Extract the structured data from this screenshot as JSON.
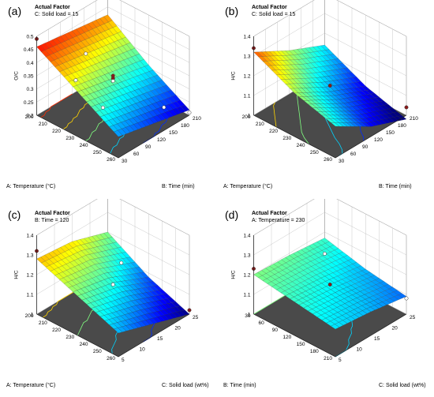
{
  "chart_data": [
    {
      "type": "surface",
      "panel": "(a)",
      "header": {
        "title": "Actual Factor",
        "factor_text": "C: Solid load = 15"
      },
      "xlabel": "A: Temperature (°C)",
      "ylabel": "B: Time (min)",
      "zlabel": "O/C",
      "x_ticks": [
        "200",
        "210",
        "220",
        "230",
        "240",
        "250",
        "260"
      ],
      "y_ticks": [
        "30",
        "60",
        "90",
        "120",
        "150",
        "180",
        "210"
      ],
      "z_ticks": [
        "0.2",
        "0.25",
        "0.3",
        "0.35",
        "0.4",
        "0.45",
        "0.5"
      ],
      "xlim": [
        200,
        260
      ],
      "ylim": [
        30,
        210
      ],
      "zlim": [
        0.2,
        0.5
      ],
      "surface": {
        "x": [
          200,
          230,
          260
        ],
        "y": [
          30,
          120,
          210
        ],
        "z": [
          [
            0.46,
            0.44,
            0.42
          ],
          [
            0.37,
            0.34,
            0.31
          ],
          [
            0.28,
            0.25,
            0.22
          ]
        ]
      },
      "points": [
        [
          200,
          30,
          0.49
        ],
        [
          210,
          120,
          0.38
        ],
        [
          220,
          60,
          0.36
        ],
        [
          230,
          120,
          0.35
        ],
        [
          230,
          120,
          0.34
        ],
        [
          230,
          120,
          0.33
        ],
        [
          240,
          60,
          0.31
        ],
        [
          250,
          180,
          0.23
        ],
        [
          260,
          210,
          0.21
        ]
      ]
    },
    {
      "type": "surface",
      "panel": "(b)",
      "header": {
        "title": "Actual Factor",
        "factor_text": "C: Solid load = 15"
      },
      "xlabel": "A: Temperature (°C)",
      "ylabel": "B: Time (min)",
      "zlabel": "H/C",
      "x_ticks": [
        "200",
        "210",
        "220",
        "230",
        "240",
        "250",
        "260"
      ],
      "y_ticks": [
        "30",
        "60",
        "90",
        "120",
        "150",
        "180",
        "210"
      ],
      "z_ticks": [
        "1",
        "1.1",
        "1.2",
        "1.3",
        "1.4"
      ],
      "xlim": [
        200,
        260
      ],
      "ylim": [
        30,
        210
      ],
      "zlim": [
        1,
        1.4
      ],
      "surface": {
        "x": [
          200,
          230,
          260
        ],
        "y": [
          30,
          120,
          210
        ],
        "z": [
          [
            1.32,
            1.22,
            1.14
          ],
          [
            1.22,
            1.12,
            1.04
          ],
          [
            1.16,
            1.05,
            0.98
          ]
        ]
      },
      "points": [
        [
          200,
          30,
          1.34
        ],
        [
          230,
          120,
          1.15
        ],
        [
          260,
          210,
          1.04
        ]
      ]
    },
    {
      "type": "surface",
      "panel": "(c)",
      "header": {
        "title": "Actual Factor",
        "factor_text": "B: Time = 120"
      },
      "xlabel": "A: Temperature (°C)",
      "ylabel": "C: Solid load (wt%)",
      "zlabel": "H/C",
      "x_ticks": [
        "200",
        "210",
        "220",
        "230",
        "240",
        "250",
        "260"
      ],
      "y_ticks": [
        "5",
        "10",
        "15",
        "20",
        "25"
      ],
      "z_ticks": [
        "1",
        "1.1",
        "1.2",
        "1.3",
        "1.4"
      ],
      "xlim": [
        200,
        260
      ],
      "ylim": [
        5,
        25
      ],
      "zlim": [
        1,
        1.4
      ],
      "surface": {
        "x": [
          200,
          230,
          260
        ],
        "y": [
          5,
          15,
          25
        ],
        "z": [
          [
            1.28,
            1.26,
            1.2
          ],
          [
            1.2,
            1.16,
            1.08
          ],
          [
            1.12,
            1.06,
            1.0
          ]
        ]
      },
      "points": [
        [
          200,
          5,
          1.32
        ],
        [
          230,
          15,
          1.15
        ],
        [
          210,
          25,
          1.08
        ],
        [
          260,
          25,
          1.02
        ]
      ]
    },
    {
      "type": "surface",
      "panel": "(d)",
      "header": {
        "title": "Actual Factor",
        "factor_text": "A: Temperature = 230"
      },
      "xlabel": "B: Time (min)",
      "ylabel": "C: Solid load (wt%)",
      "zlabel": "H/C",
      "x_ticks": [
        "30",
        "60",
        "90",
        "120",
        "150",
        "180",
        "210"
      ],
      "y_ticks": [
        "5",
        "10",
        "15",
        "20",
        "25"
      ],
      "z_ticks": [
        "1",
        "1.1",
        "1.2",
        "1.3",
        "1.4"
      ],
      "xlim": [
        30,
        210
      ],
      "ylim": [
        5,
        25
      ],
      "zlim": [
        1,
        1.4
      ],
      "surface": {
        "x": [
          30,
          120,
          210
        ],
        "y": [
          5,
          15,
          25
        ],
        "z": [
          [
            1.2,
            1.19,
            1.17
          ],
          [
            1.17,
            1.15,
            1.12
          ],
          [
            1.14,
            1.12,
            1.09
          ]
        ]
      },
      "points": [
        [
          30,
          5,
          1.23
        ],
        [
          120,
          15,
          1.15
        ],
        [
          30,
          25,
          1.09
        ],
        [
          210,
          25,
          1.08
        ]
      ]
    }
  ]
}
